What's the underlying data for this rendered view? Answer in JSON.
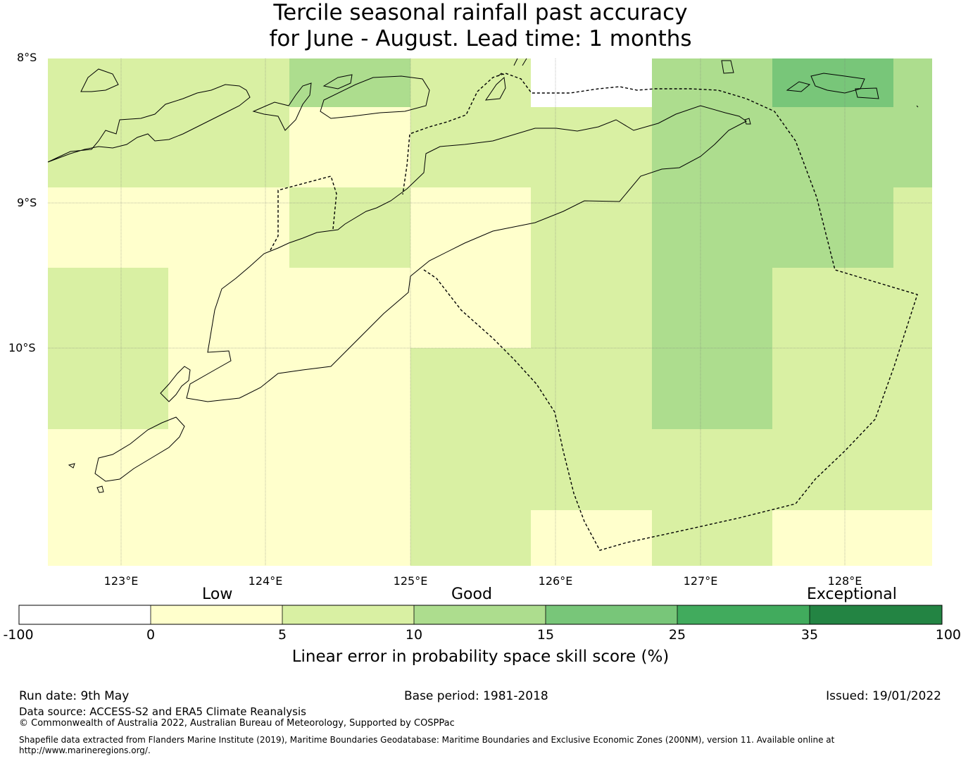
{
  "title": {
    "line1": "Tercile seasonal rainfall past accuracy",
    "line2": "for June - August. Lead time: 1 months"
  },
  "map": {
    "lat_labels": [
      "8°S",
      "9°S",
      "10°S"
    ],
    "lon_labels": [
      "123°E",
      "124°E",
      "125°E",
      "126°E",
      "127°E",
      "128°E"
    ]
  },
  "colorbar": {
    "categories": [
      "Low",
      "Good",
      "Exceptional"
    ],
    "ticks": [
      "-100",
      "0",
      "5",
      "10",
      "15",
      "25",
      "35",
      "100"
    ],
    "colors": [
      "#ffffff",
      "#ffffcc",
      "#d9f0a3",
      "#addd8e",
      "#78c679",
      "#41ab5d",
      "#238443"
    ],
    "label": "Linear error in probability space skill score (%)"
  },
  "footer": {
    "run_date": "Run date: 9th May",
    "base_period": "Base period: 1981-2018",
    "issued": "Issued: 19/01/2022",
    "data_source": "Data source: ACCESS-S2 and ERA5 Climate Reanalysis",
    "copyright": "© Commonwealth of Australia 2022, Australian Bureau of Meteorology, Supported by COSPPac",
    "shapefile_line1": "Shapefile data extracted from Flanders Marine Institute (2019), Maritime Boundaries Geodatabase: Maritime Boundaries and Exclusive Economic Zones (200NM), version 11. Available online at",
    "shapefile_line2": "http://www.marineregions.org/."
  }
}
